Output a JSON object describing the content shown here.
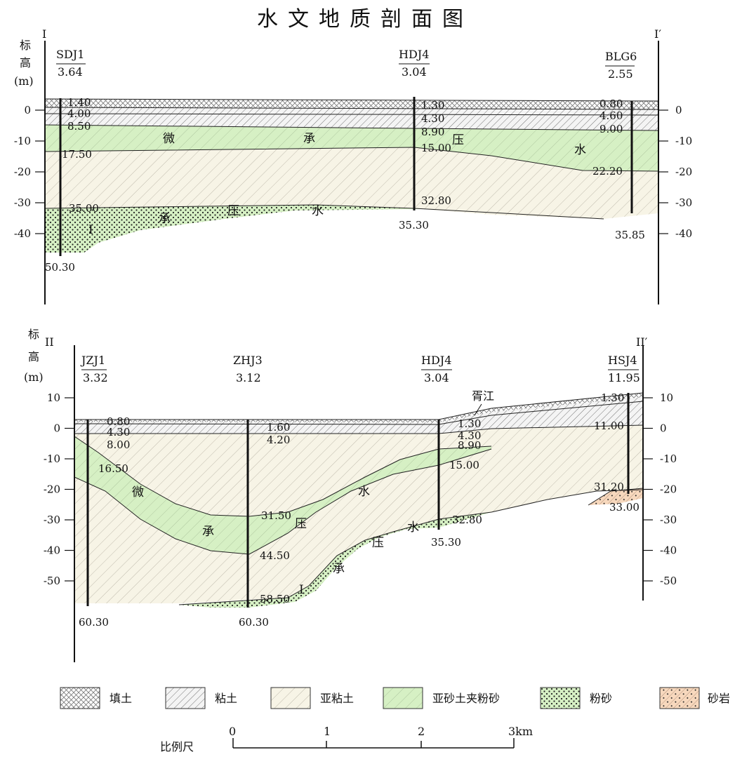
{
  "title": "水文地质剖面图",
  "section1": {
    "left_mark": "I",
    "right_mark": "I′",
    "elev_label": [
      "标",
      "高",
      "(m)"
    ],
    "yticks": [
      "0",
      "-10",
      "-20",
      "-30",
      "-40"
    ],
    "yticks_right": [
      "0",
      "-10",
      "-20",
      "-30",
      "-40"
    ],
    "boreholes": [
      {
        "name": "SDJ1",
        "elev": "3.64",
        "bottom": "50.30",
        "depths": [
          "1.40",
          "4.00",
          "8.50",
          "17.50",
          "35.00"
        ]
      },
      {
        "name": "HDJ4",
        "elev": "3.04",
        "bottom": "35.30",
        "depths": [
          "1.30",
          "4.30",
          "8.90",
          "15.00",
          "32.80"
        ]
      },
      {
        "name": "BLG6",
        "elev": "2.55",
        "bottom": "35.85",
        "depths": [
          "0.80",
          "4.60",
          "9.00",
          "22.20"
        ]
      }
    ],
    "water_upper": [
      "微",
      "承",
      "压",
      "水"
    ],
    "water_lower": [
      "承",
      "压",
      "水"
    ],
    "aquifer_mark": "I"
  },
  "section2": {
    "left_mark": "II",
    "right_mark": "II′",
    "elev_label": [
      "标",
      "高",
      "(m)"
    ],
    "yticks": [
      "10",
      "0",
      "-10",
      "-20",
      "-30",
      "-40",
      "-50"
    ],
    "yticks_right": [
      "10",
      "0",
      "-10",
      "-20",
      "-30",
      "-40",
      "-50"
    ],
    "boreholes": [
      {
        "name": "JZJ1",
        "elev": "3.32",
        "bottom": "60.30",
        "depths": [
          "0.80",
          "4.30",
          "8.00",
          "16.50"
        ]
      },
      {
        "name": "ZHJ3",
        "elev": "3.12",
        "bottom": "60.30",
        "depths": [
          "1.60",
          "4.20",
          "31.50",
          "44.50",
          "58.50"
        ]
      },
      {
        "name": "HDJ4",
        "elev": "3.04",
        "bottom": "35.30",
        "depths": [
          "1.30",
          "4.30",
          "8.90",
          "15.00",
          "32.80"
        ]
      },
      {
        "name": "HSJ4",
        "elev": "11.95",
        "bottom": "33.00",
        "depths": [
          "1.30",
          "11.00",
          "31.20"
        ]
      }
    ],
    "river": "胥江",
    "water_upper": [
      "微",
      "承",
      "压",
      "水"
    ],
    "water_lower": [
      "承",
      "压",
      "水"
    ],
    "aquifer_mark": "I"
  },
  "legend": [
    {
      "label": "填土",
      "pattern": "cross-hatch"
    },
    {
      "label": "粘土",
      "pattern": "dense-diagonal"
    },
    {
      "label": "亚粘土",
      "pattern": "sparse-diagonal"
    },
    {
      "label": "亚砂土夹粉砂",
      "pattern": "green-diagonal"
    },
    {
      "label": "粉砂",
      "pattern": "green-dots"
    },
    {
      "label": "砂岩",
      "pattern": "orange-dots"
    }
  ],
  "scale": {
    "label": "比例尺",
    "ticks": [
      "0",
      "1",
      "2",
      "3km"
    ]
  },
  "colors": {
    "green": "#d6f0c4",
    "orange": "#f7d8bd",
    "cream": "#f7f4e6"
  }
}
